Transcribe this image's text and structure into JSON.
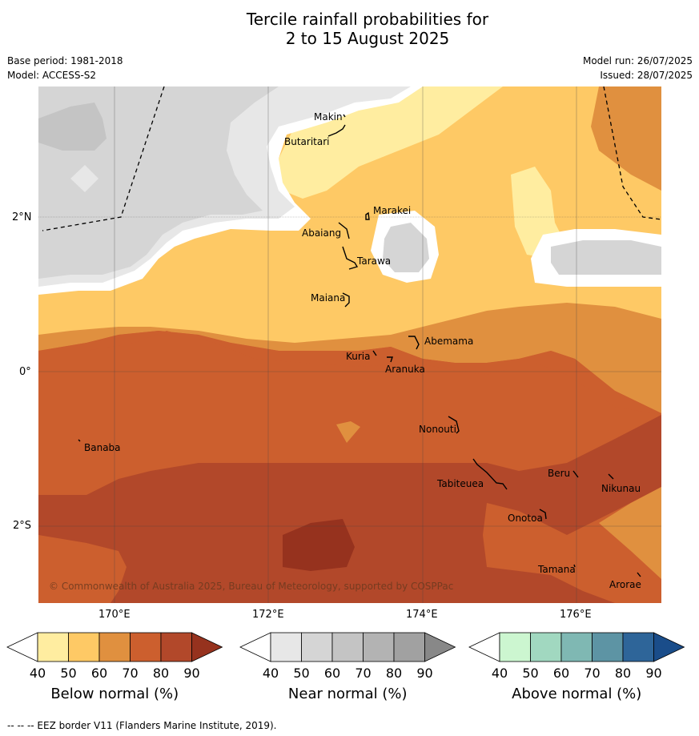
{
  "title": {
    "line1": "Tercile rainfall probabilities for",
    "line2": "2 to 15 August 2025"
  },
  "meta": {
    "base_period": "Base period: 1981-2018",
    "model": "Model: ACCESS-S2",
    "model_run": "Model run: 26/07/2025",
    "issued": "Issued: 28/07/2025"
  },
  "map": {
    "lat_labels": [
      "2°N",
      "0°",
      "2°S"
    ],
    "lon_labels": [
      "170°E",
      "172°E",
      "174°E",
      "176°E"
    ],
    "copyright": "© Commonwealth of Australia 2025, Bureau of Meteorology, supported by COSPPac",
    "islands": [
      "Makin",
      "Butaritari",
      "Marakei",
      "Abaiang",
      "Tarawa",
      "Maiana",
      "Abemama",
      "Kuria",
      "Aranuka",
      "Nonouti",
      "Banaba",
      "Beru",
      "Tabiteuea",
      "Nikunau",
      "Onotoa",
      "Tamana",
      "Arorae"
    ]
  },
  "colorbars": [
    {
      "title": "Below normal (%)",
      "ticks": [
        "40",
        "50",
        "60",
        "70",
        "80",
        "90"
      ],
      "colors": [
        "#ffffff",
        "#ffeda0",
        "#fec965",
        "#e0903f",
        "#cc5f2e",
        "#b2482a",
        "#96321e"
      ]
    },
    {
      "title": "Near normal (%)",
      "ticks": [
        "40",
        "50",
        "60",
        "70",
        "80",
        "90"
      ],
      "colors": [
        "#ffffff",
        "#e7e7e7",
        "#d5d5d5",
        "#c4c4c4",
        "#b3b3b3",
        "#a1a1a1",
        "#888888"
      ]
    },
    {
      "title": "Above normal (%)",
      "ticks": [
        "40",
        "50",
        "60",
        "70",
        "80",
        "90"
      ],
      "colors": [
        "#ffffff",
        "#ccf6d0",
        "#a1d8c0",
        "#7fb8b3",
        "#5d94a4",
        "#2e6599",
        "#1a4d8a"
      ]
    }
  ],
  "footnote": "--  --  -- EEZ border V11 (Flanders Marine Institute, 2019)."
}
